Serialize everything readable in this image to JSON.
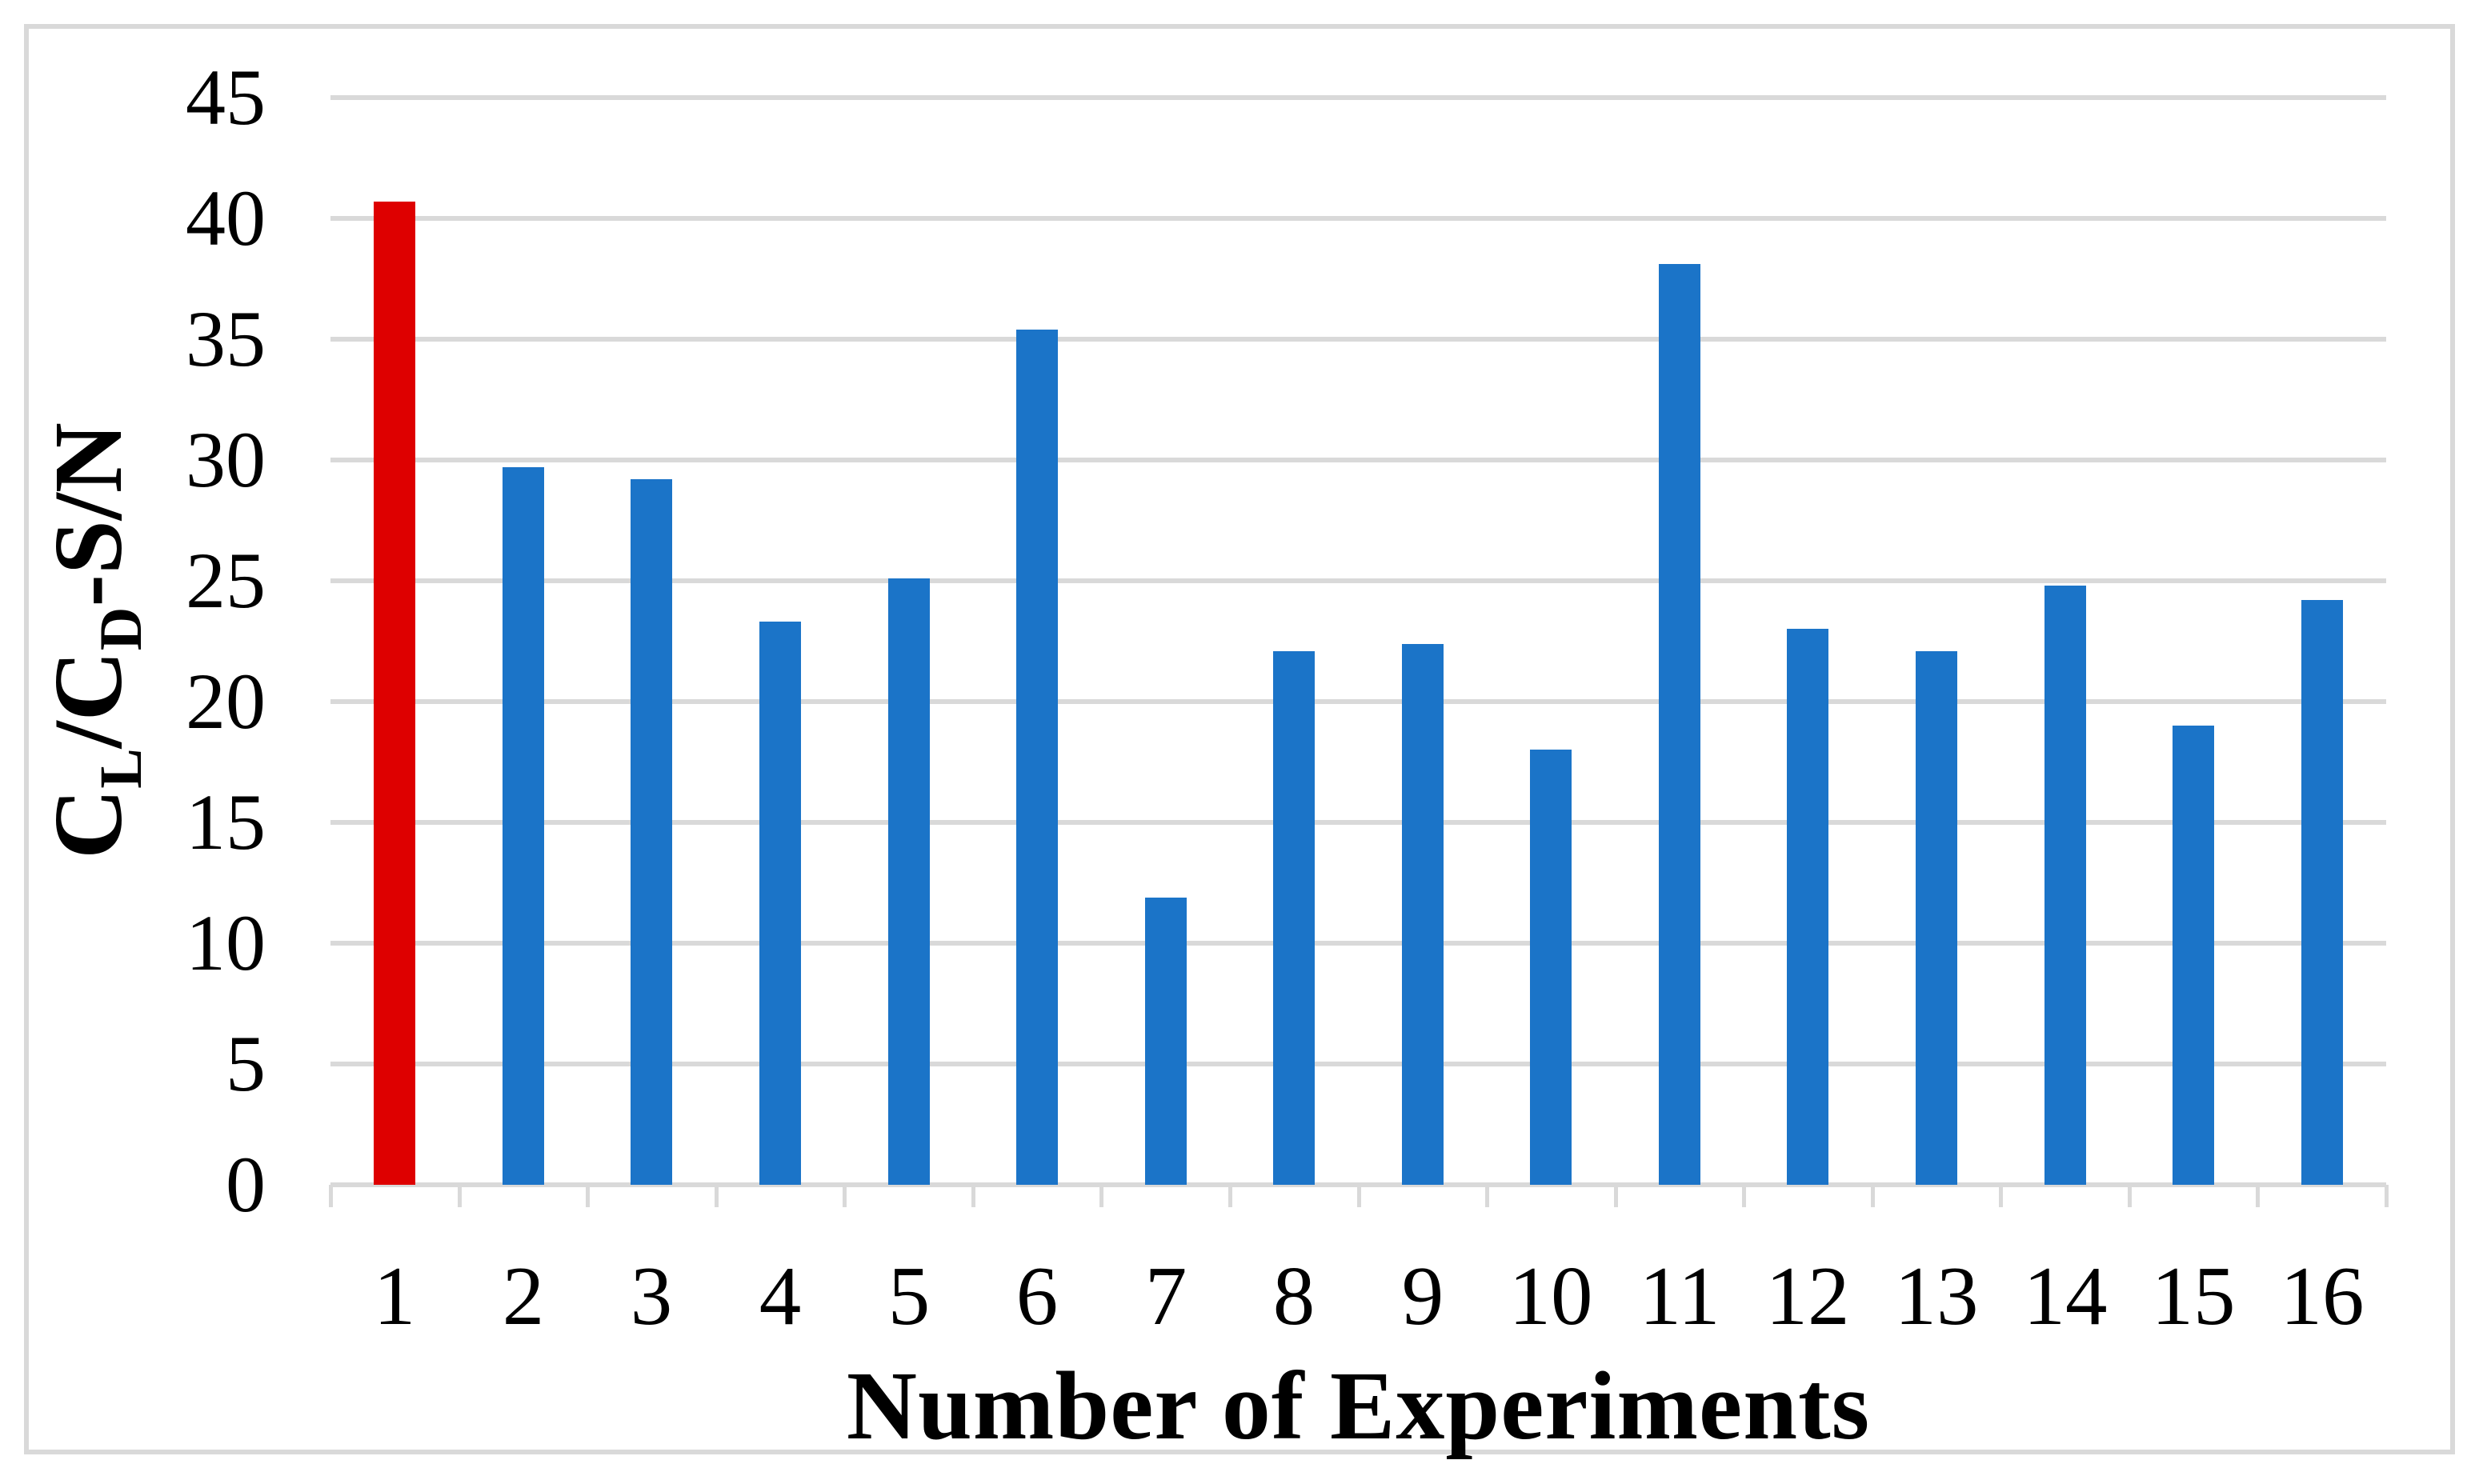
{
  "figure": {
    "background": "#FFFFFF",
    "border_color": "#D9D9D9"
  },
  "chart_data": {
    "type": "bar",
    "title": "",
    "xlabel": "Number of Experiments",
    "ylabel": "CL/CD-S/N",
    "ylabel_parts": {
      "base1": "C",
      "sub1": "L",
      "mid": "/C",
      "sub2": "D",
      "tail": "-S/N"
    },
    "categories": [
      "1",
      "2",
      "3",
      "4",
      "5",
      "6",
      "7",
      "8",
      "9",
      "10",
      "11",
      "12",
      "13",
      "14",
      "15",
      "16"
    ],
    "values": [
      40.7,
      29.7,
      29.2,
      23.3,
      25.1,
      35.4,
      11.9,
      22.1,
      22.4,
      18.0,
      38.1,
      23.0,
      22.1,
      24.8,
      19.0,
      24.2
    ],
    "series_name": "CL/CD-S/N",
    "ylim": [
      0,
      45
    ],
    "ytick_step": 5,
    "ytick_labels": [
      "45",
      "40",
      "35",
      "30",
      "25",
      "20",
      "15",
      "10",
      "5",
      "0"
    ],
    "grid": true,
    "legend": false,
    "bar_color": "#1B74C8",
    "highlight_color": "#DE0000",
    "highlight_index": 0,
    "gridline_color": "#D9D9D9",
    "axis_line_color": "#D9D9D9",
    "tick_color": "#D9D9D9"
  }
}
